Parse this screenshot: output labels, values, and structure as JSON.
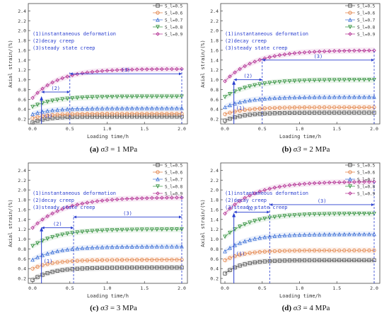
{
  "legend_labels": [
    "S_l=0.5",
    "S_l=0.6",
    "S_l=0.7",
    "S_l=0.8",
    "S_l=0.9"
  ],
  "annotation_lines": [
    "(1)instantaneous deformation",
    "(2)decay creep",
    "(3)steady state creep"
  ],
  "stage_labels": [
    "(1)",
    "(2)",
    "(3)"
  ],
  "series_colors": [
    "#444444",
    "#e07a3a",
    "#3b6fd6",
    "#2f8f3a",
    "#b0288f"
  ],
  "series_markers": [
    "square",
    "circle",
    "triangle-up",
    "triangle-down",
    "diamond"
  ],
  "chart_data": [
    {
      "type": "line",
      "caption": {
        "label": "(a)",
        "sigma": "σ3",
        "value": "= 1 MPa"
      },
      "xlabel": "Loading time/h",
      "ylabel": "Axial strain/(%)",
      "xlim": [
        0,
        2.0
      ],
      "ylim": [
        0.1,
        2.55
      ],
      "xticks": [
        "0.0",
        "0.5",
        "1.0",
        "1.5",
        "2.0"
      ],
      "yticks": [
        "0.2",
        "0.4",
        "0.6",
        "0.8",
        "1.0",
        "1.2",
        "1.4",
        "1.6",
        "1.8",
        "2.0",
        "2.2",
        "2.4"
      ],
      "legend_placement": "top-right",
      "stage_bounds": [
        0.12,
        0.5,
        2.0
      ],
      "stage_y": [
        0.65,
        0.75,
        1.12
      ],
      "series": [
        {
          "name": "S_l=0.5",
          "start": 0.13,
          "end": 0.25,
          "tau": 0.2
        },
        {
          "name": "S_l=0.6",
          "start": 0.22,
          "end": 0.31,
          "tau": 0.22
        },
        {
          "name": "S_l=0.7",
          "start": 0.3,
          "end": 0.42,
          "tau": 0.25
        },
        {
          "name": "S_l=0.8",
          "start": 0.45,
          "end": 0.66,
          "tau": 0.3
        },
        {
          "name": "S_l=0.9",
          "start": 0.63,
          "end": 1.22,
          "tau": 0.35
        }
      ]
    },
    {
      "type": "line",
      "caption": {
        "label": "(b)",
        "sigma": "σ3",
        "value": "= 2 MPa"
      },
      "xlabel": "Loading time/h",
      "ylabel": "Axial strain/(%)",
      "xlim": [
        0,
        2.0
      ],
      "ylim": [
        0.1,
        2.55
      ],
      "xticks": [
        "0.0",
        "0.5",
        "1.0",
        "1.5",
        "2.0"
      ],
      "yticks": [
        "0.2",
        "0.4",
        "0.6",
        "0.8",
        "1.0",
        "1.2",
        "1.4",
        "1.6",
        "1.8",
        "2.0",
        "2.2",
        "2.4"
      ],
      "legend_placement": "top-right",
      "stage_bounds": [
        0.12,
        0.5,
        2.0
      ],
      "stage_y": [
        0.97,
        1.0,
        1.4
      ],
      "series": [
        {
          "name": "S_l=0.5",
          "start": 0.17,
          "end": 0.33,
          "tau": 0.25
        },
        {
          "name": "S_l=0.6",
          "start": 0.3,
          "end": 0.44,
          "tau": 0.28
        },
        {
          "name": "S_l=0.7",
          "start": 0.44,
          "end": 0.65,
          "tau": 0.3
        },
        {
          "name": "S_l=0.8",
          "start": 0.65,
          "end": 1.0,
          "tau": 0.35
        },
        {
          "name": "S_l=0.9",
          "start": 0.97,
          "end": 1.6,
          "tau": 0.4
        }
      ]
    },
    {
      "type": "line",
      "caption": {
        "label": "(c)",
        "sigma": "σ3",
        "value": "= 3 MPa"
      },
      "xlabel": "Loading time/h",
      "ylabel": "Axial strain/(%)",
      "xlim": [
        0,
        2.0
      ],
      "ylim": [
        0.1,
        2.55
      ],
      "xticks": [
        "0.0",
        "0.5",
        "1.0",
        "1.5",
        "2.0"
      ],
      "yticks": [
        "0.2",
        "0.4",
        "0.6",
        "0.8",
        "1.0",
        "1.2",
        "1.4",
        "1.6",
        "1.8",
        "2.0",
        "2.2",
        "2.4"
      ],
      "legend_placement": "top-right",
      "stage_bounds": [
        0.12,
        0.55,
        2.0
      ],
      "stage_y": [
        1.23,
        1.23,
        1.45
      ],
      "series": [
        {
          "name": "S_l=0.5",
          "start": 0.17,
          "end": 0.42,
          "tau": 0.25
        },
        {
          "name": "S_l=0.6",
          "start": 0.4,
          "end": 0.58,
          "tau": 0.28
        },
        {
          "name": "S_l=0.7",
          "start": 0.58,
          "end": 0.85,
          "tau": 0.32
        },
        {
          "name": "S_l=0.8",
          "start": 0.86,
          "end": 1.2,
          "tau": 0.35
        },
        {
          "name": "S_l=0.9",
          "start": 1.23,
          "end": 1.85,
          "tau": 0.42
        }
      ]
    },
    {
      "type": "line",
      "caption": {
        "label": "(d)",
        "sigma": "σ3",
        "value": "= 4 MPa"
      },
      "xlabel": "Loading time/h",
      "ylabel": "Axial strain/(%)",
      "xlim": [
        0,
        2.0
      ],
      "ylim": [
        0.1,
        2.55
      ],
      "xticks": [
        "0.0",
        "0.5",
        "1.0",
        "1.5",
        "2.0"
      ],
      "yticks": [
        "0.2",
        "0.4",
        "0.6",
        "0.8",
        "1.0",
        "1.2",
        "1.4",
        "1.6",
        "1.8",
        "2.0",
        "2.2",
        "2.4"
      ],
      "legend_placement": "top-right",
      "stage_bounds": [
        0.12,
        0.6,
        2.0
      ],
      "stage_y": [
        1.52,
        1.55,
        1.7
      ],
      "series": [
        {
          "name": "S_l=0.5",
          "start": 0.3,
          "end": 0.57,
          "tau": 0.22
        },
        {
          "name": "S_l=0.6",
          "start": 0.57,
          "end": 0.77,
          "tau": 0.25
        },
        {
          "name": "S_l=0.7",
          "start": 0.75,
          "end": 1.1,
          "tau": 0.3
        },
        {
          "name": "S_l=0.8",
          "start": 1.05,
          "end": 1.52,
          "tau": 0.35
        },
        {
          "name": "S_l=0.9",
          "start": 1.52,
          "end": 2.17,
          "tau": 0.4
        }
      ]
    }
  ]
}
